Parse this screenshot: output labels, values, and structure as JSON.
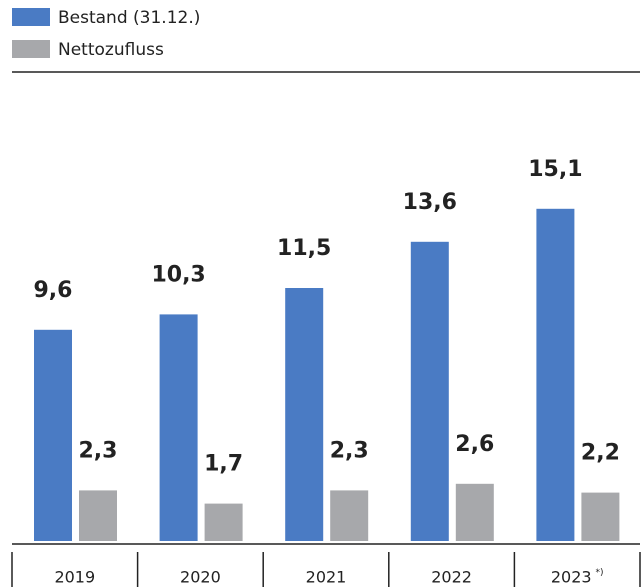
{
  "chart_data": {
    "type": "bar",
    "categories": [
      "2019",
      "2020",
      "2021",
      "2022",
      "2023"
    ],
    "category_notes": [
      null,
      null,
      null,
      null,
      "*)"
    ],
    "series": [
      {
        "name": "Bestand (31.12.)",
        "color": "#4a7bc4",
        "values": [
          9.6,
          10.3,
          11.5,
          13.6,
          15.1
        ],
        "value_labels": [
          "9,6",
          "10,3",
          "11,5",
          "13,6",
          "15,1"
        ]
      },
      {
        "name": "Nettozufluss",
        "color": "#a7a8ab",
        "values": [
          2.3,
          1.7,
          2.3,
          2.6,
          2.2
        ],
        "value_labels": [
          "2,3",
          "1,7",
          "2,3",
          "2,6",
          "2,2"
        ]
      }
    ]
  }
}
